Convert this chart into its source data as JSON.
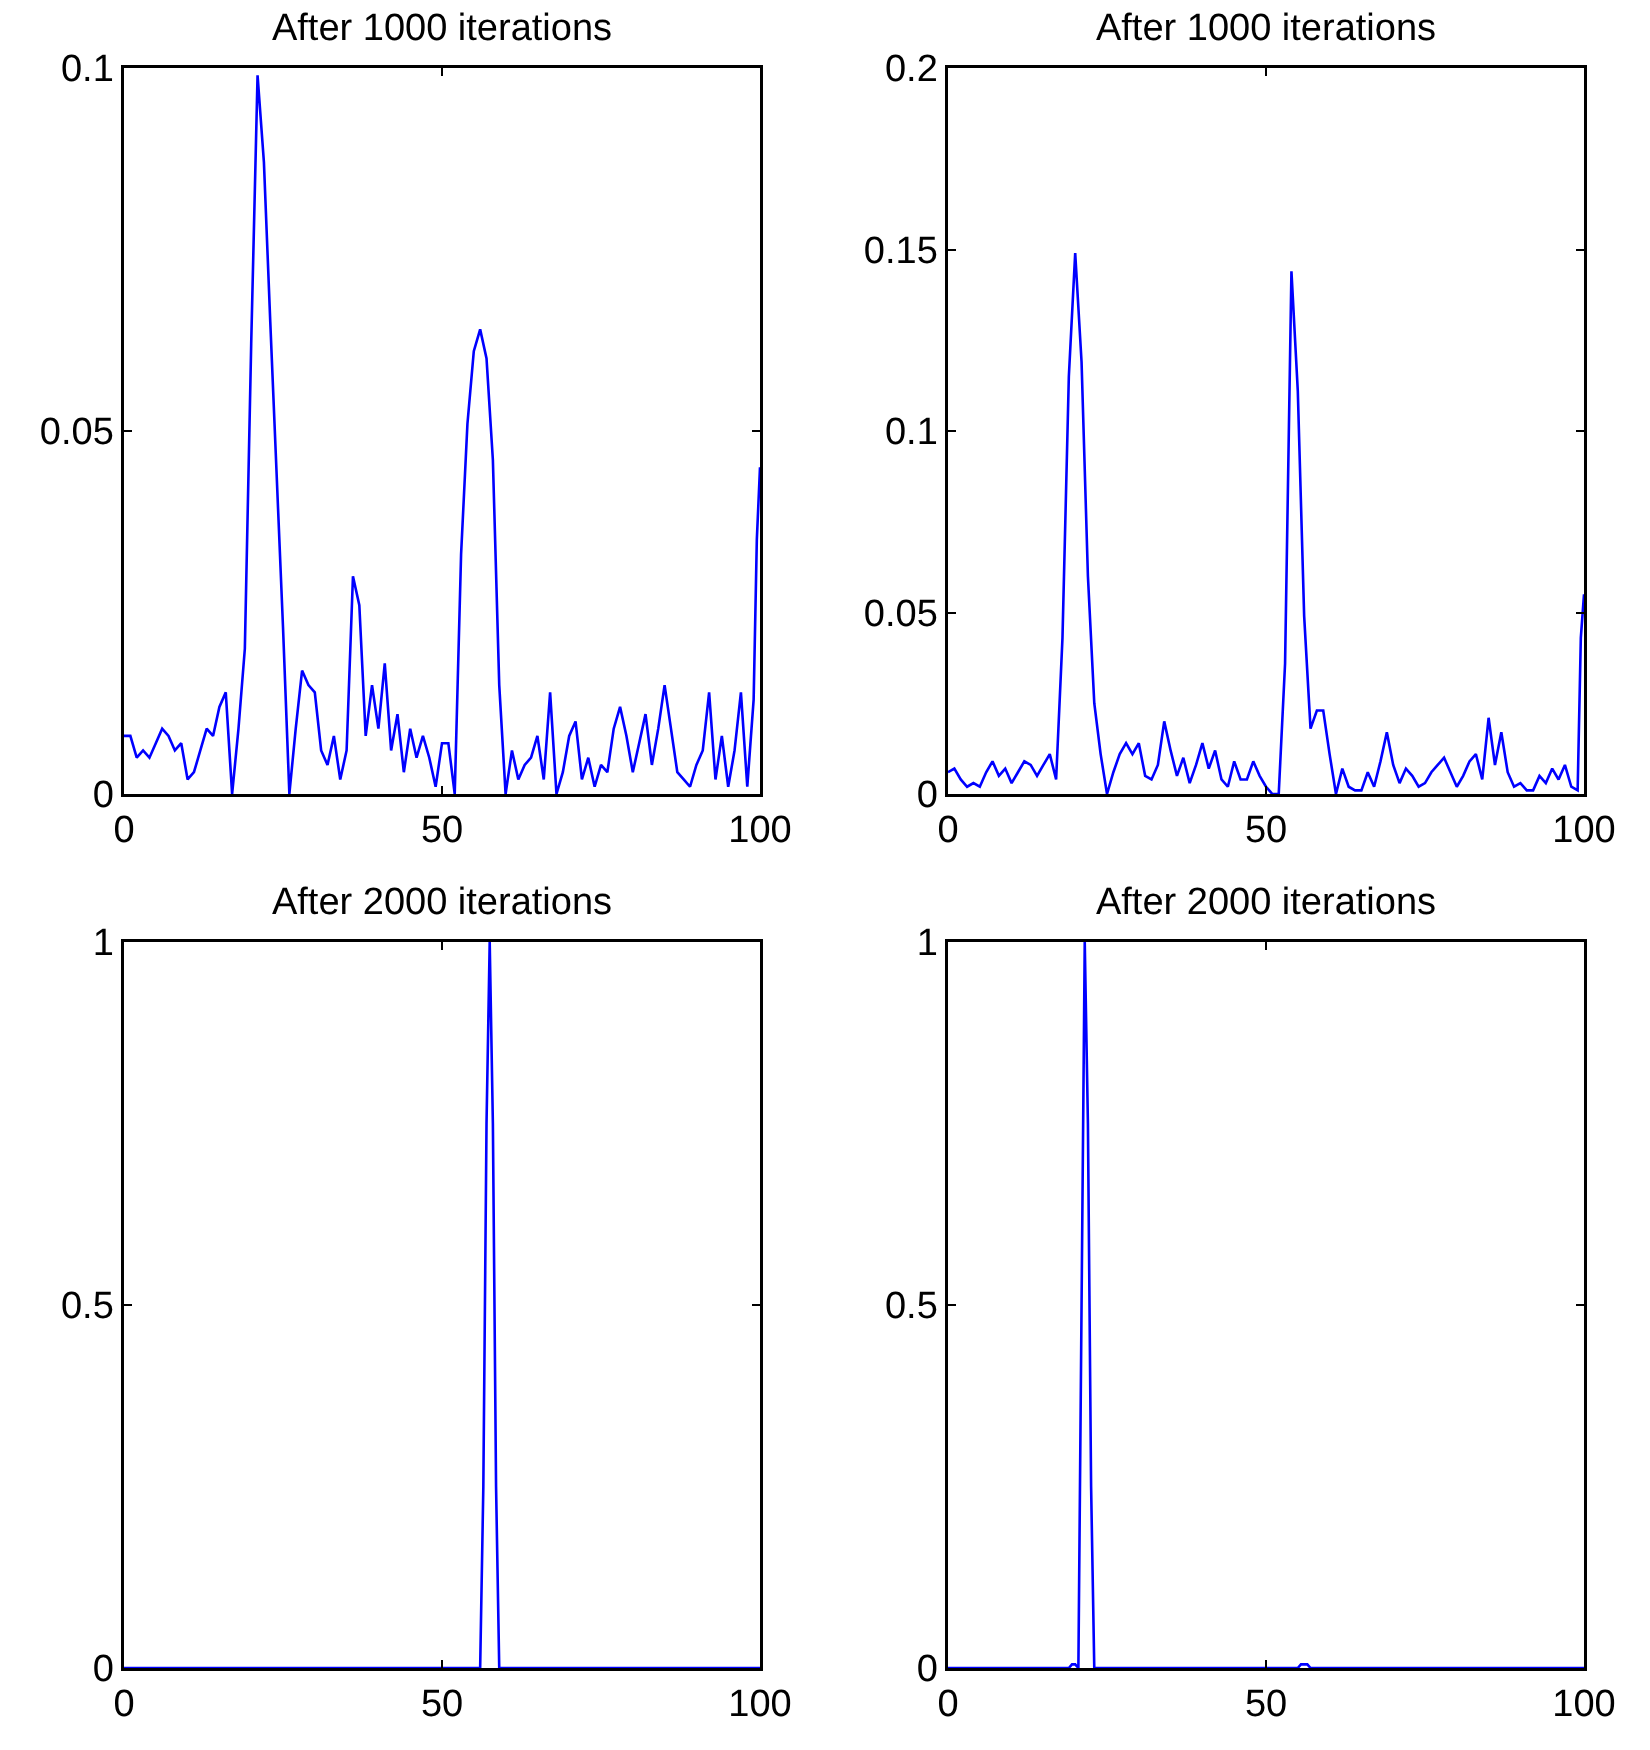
{
  "chart_data": [
    {
      "type": "line",
      "title": "After 1000 iterations",
      "xlim": [
        0,
        100
      ],
      "xticks": [
        0,
        50,
        100
      ],
      "ylim": [
        0,
        0.1
      ],
      "yticks": [
        0,
        0.05,
        0.1
      ],
      "grid": false,
      "marker": "none",
      "line_style": "solid",
      "series": [
        {
          "color": "#0000ff",
          "x": [
            0,
            1,
            2,
            3,
            4,
            5,
            6,
            7,
            8,
            9,
            10,
            11,
            12,
            13,
            14,
            15,
            16,
            17,
            18,
            19,
            20,
            21,
            22,
            23,
            24,
            25,
            26,
            27,
            28,
            29,
            30,
            31,
            32,
            33,
            34,
            35,
            36,
            37,
            38,
            39,
            40,
            41,
            42,
            43,
            44,
            45,
            46,
            47,
            48,
            49,
            50,
            51,
            52,
            53,
            54,
            55,
            56,
            57,
            58,
            59,
            60,
            61,
            62,
            63,
            64,
            65,
            66,
            67,
            68,
            69,
            70,
            71,
            72,
            73,
            74,
            75,
            76,
            77,
            78,
            79,
            80,
            81,
            82,
            83,
            84,
            85,
            86,
            87,
            88,
            89,
            90,
            91,
            92,
            93,
            94,
            95,
            96,
            97,
            98,
            99,
            99.5,
            100
          ],
          "values": [
            0.008,
            0.008,
            0.005,
            0.006,
            0.005,
            0.007,
            0.009,
            0.008,
            0.006,
            0.007,
            0.002,
            0.003,
            0.006,
            0.009,
            0.008,
            0.012,
            0.014,
            0,
            0.009,
            0.02,
            0.062,
            0.099,
            0.087,
            0.065,
            0.044,
            0.023,
            0,
            0.009,
            0.017,
            0.015,
            0.014,
            0.006,
            0.004,
            0.008,
            0.002,
            0.006,
            0.03,
            0.026,
            0.008,
            0.015,
            0.009,
            0.018,
            0.006,
            0.011,
            0.003,
            0.009,
            0.005,
            0.008,
            0.005,
            0.001,
            0.007,
            0.007,
            0,
            0.033,
            0.051,
            0.061,
            0.064,
            0.06,
            0.046,
            0.015,
            0,
            0.006,
            0.002,
            0.004,
            0.005,
            0.008,
            0.002,
            0.014,
            0,
            0.003,
            0.008,
            0.01,
            0.002,
            0.005,
            0.001,
            0.004,
            0.003,
            0.009,
            0.012,
            0.008,
            0.003,
            0.007,
            0.011,
            0.004,
            0.009,
            0.015,
            0.009,
            0.003,
            0.002,
            0.001,
            0.004,
            0.006,
            0.014,
            0.002,
            0.008,
            0.001,
            0.006,
            0.014,
            0.001,
            0.013,
            0.035,
            0.045
          ]
        }
      ]
    },
    {
      "type": "line",
      "title": "After 1000 iterations",
      "xlim": [
        0,
        100
      ],
      "xticks": [
        0,
        50,
        100
      ],
      "ylim": [
        0,
        0.2
      ],
      "yticks": [
        0,
        0.05,
        0.1,
        0.15,
        0.2
      ],
      "grid": false,
      "marker": "none",
      "line_style": "solid",
      "series": [
        {
          "color": "#0000ff",
          "x": [
            0,
            1,
            2,
            3,
            4,
            5,
            6,
            7,
            8,
            9,
            10,
            11,
            12,
            13,
            14,
            15,
            16,
            17,
            18,
            19,
            20,
            21,
            22,
            23,
            24,
            25,
            26,
            27,
            28,
            29,
            30,
            31,
            32,
            33,
            34,
            35,
            36,
            37,
            38,
            39,
            40,
            41,
            42,
            43,
            44,
            45,
            46,
            47,
            48,
            49,
            50,
            51,
            52,
            53,
            54,
            55,
            56,
            57,
            58,
            59,
            60,
            61,
            62,
            63,
            64,
            65,
            66,
            67,
            68,
            69,
            70,
            71,
            72,
            73,
            74,
            75,
            76,
            77,
            78,
            79,
            80,
            81,
            82,
            83,
            84,
            85,
            86,
            87,
            88,
            89,
            90,
            91,
            92,
            93,
            94,
            95,
            96,
            97,
            98,
            99,
            99.5,
            100
          ],
          "values": [
            0.006,
            0.007,
            0.004,
            0.002,
            0.003,
            0.002,
            0.006,
            0.009,
            0.005,
            0.007,
            0.003,
            0.006,
            0.009,
            0.008,
            0.005,
            0.008,
            0.011,
            0.004,
            0.043,
            0.115,
            0.149,
            0.119,
            0.06,
            0.025,
            0.011,
            0,
            0.006,
            0.011,
            0.014,
            0.011,
            0.014,
            0.005,
            0.004,
            0.008,
            0.02,
            0.012,
            0.005,
            0.01,
            0.003,
            0.008,
            0.014,
            0.007,
            0.012,
            0.004,
            0.002,
            0.009,
            0.004,
            0.004,
            0.009,
            0.005,
            0.002,
            0,
            0,
            0.036,
            0.144,
            0.111,
            0.049,
            0.018,
            0.023,
            0.023,
            0.011,
            0,
            0.007,
            0.002,
            0.001,
            0.001,
            0.006,
            0.002,
            0.009,
            0.017,
            0.008,
            0.003,
            0.007,
            0.005,
            0.002,
            0.003,
            0.006,
            0.008,
            0.01,
            0.006,
            0.002,
            0.005,
            0.009,
            0.011,
            0.004,
            0.021,
            0.008,
            0.017,
            0.006,
            0.002,
            0.003,
            0.001,
            0.001,
            0.005,
            0.003,
            0.007,
            0.004,
            0.008,
            0.002,
            0.001,
            0.043,
            0.055
          ]
        }
      ]
    },
    {
      "type": "line",
      "title": "After 2000 iterations",
      "xlim": [
        0,
        100
      ],
      "xticks": [
        0,
        50,
        100
      ],
      "ylim": [
        0,
        1
      ],
      "yticks": [
        0,
        0.5,
        1
      ],
      "grid": false,
      "marker": "none",
      "line_style": "solid",
      "series": [
        {
          "color": "#0000ff",
          "x": [
            0,
            56,
            56.5,
            57,
            57.5,
            58,
            58.5,
            59,
            100
          ],
          "values": [
            0,
            0,
            0.25,
            0.75,
            1,
            0.75,
            0.25,
            0,
            0
          ]
        }
      ]
    },
    {
      "type": "line",
      "title": "After 2000 iterations",
      "xlim": [
        0,
        100
      ],
      "xticks": [
        0,
        50,
        100
      ],
      "ylim": [
        0,
        1
      ],
      "yticks": [
        0,
        0.5,
        1
      ],
      "grid": false,
      "marker": "none",
      "line_style": "solid",
      "series": [
        {
          "color": "#0000ff",
          "x": [
            0,
            19,
            19.5,
            20,
            20.5,
            21,
            21.5,
            22,
            22.5,
            23,
            55,
            55.5,
            56.5,
            57,
            100
          ],
          "values": [
            0,
            0,
            0.005,
            0.005,
            0,
            0.5,
            1,
            0.75,
            0.25,
            0,
            0,
            0.005,
            0.005,
            0,
            0
          ]
        }
      ]
    }
  ]
}
